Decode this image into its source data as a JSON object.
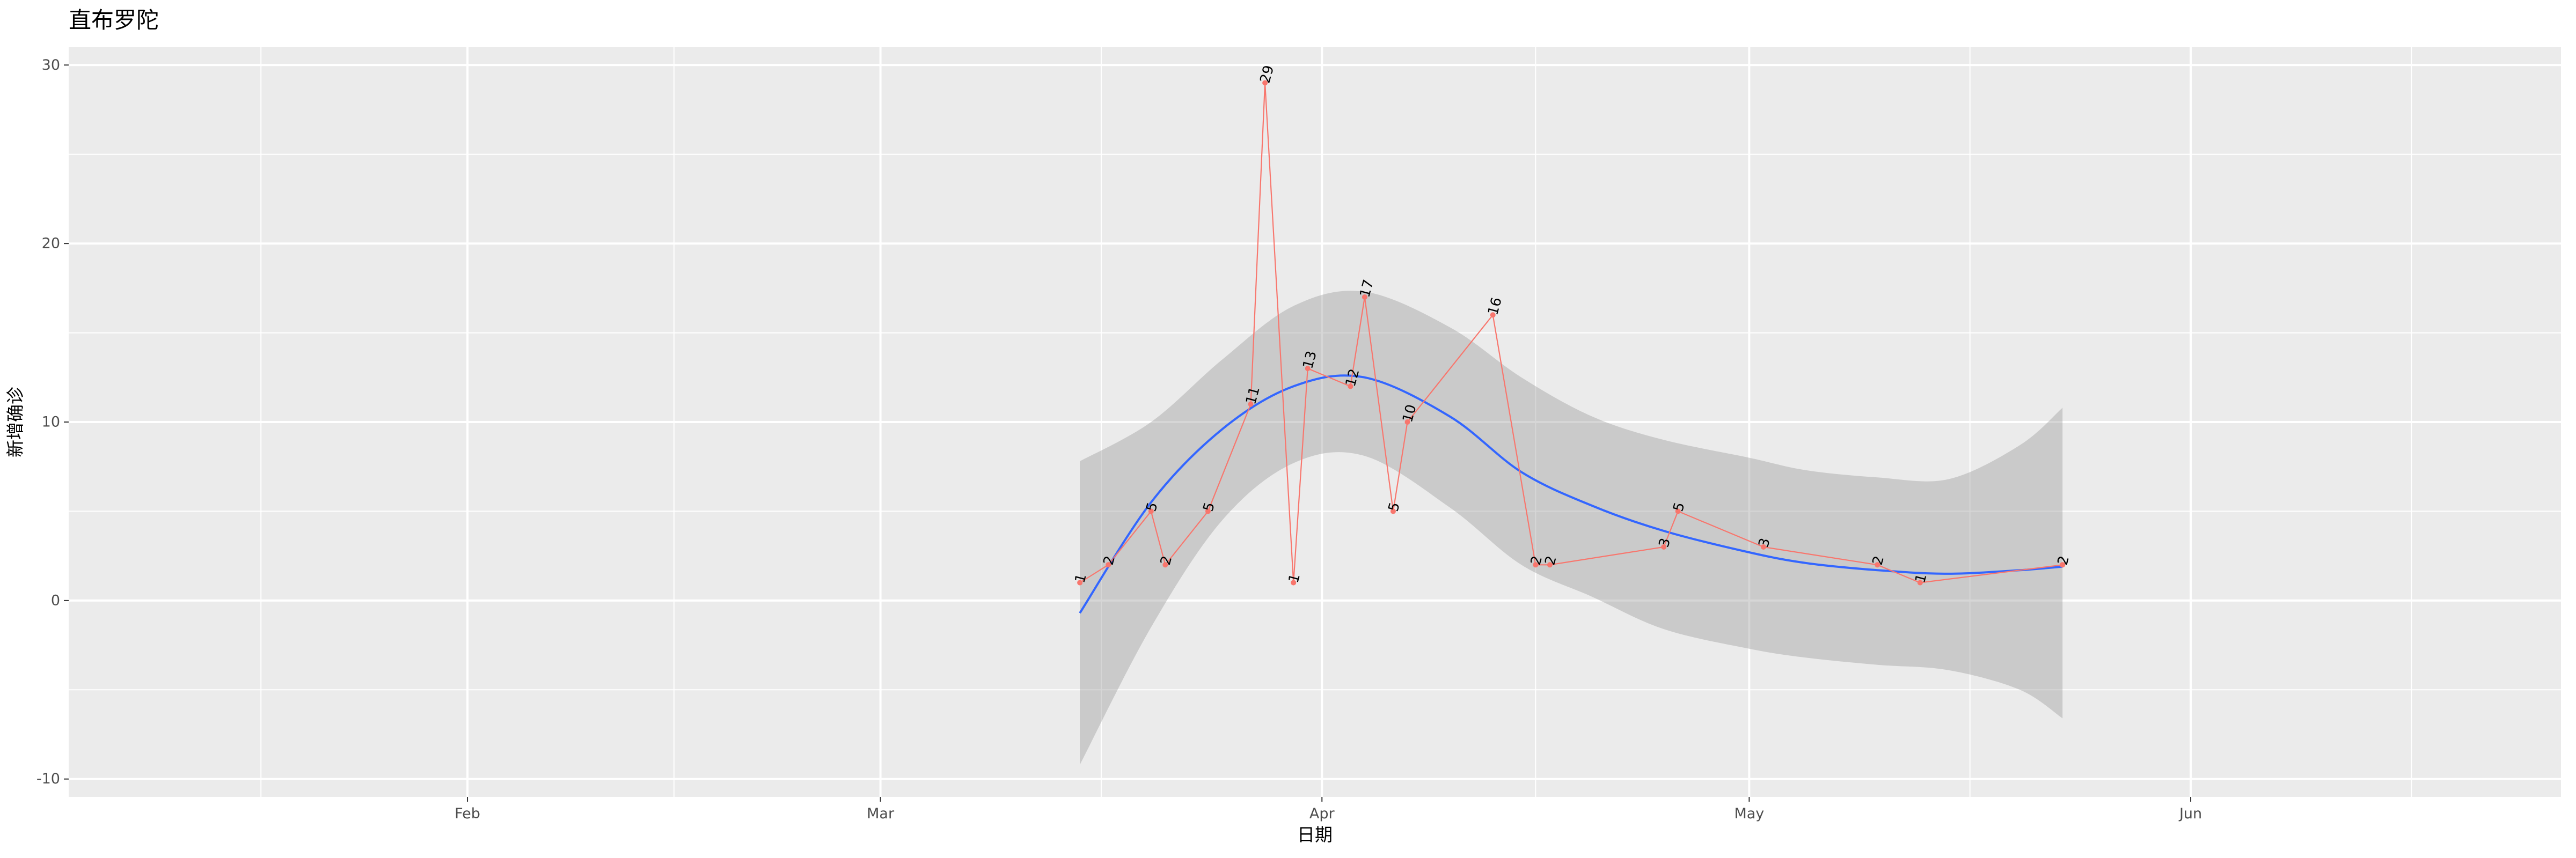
{
  "chart_data": {
    "type": "line",
    "title": "直布罗陀",
    "xlabel": "日期",
    "ylabel": "新增确诊",
    "x_ticks": [
      "2020-02-01",
      "2020-03-01",
      "2020-04-01",
      "2020-05-01",
      "2020-06-01"
    ],
    "x_tick_labels": [
      "Feb",
      "Mar",
      "Apr",
      "May",
      "Jun"
    ],
    "xlim": [
      "2020-01-04",
      "2020-06-27"
    ],
    "ylim": [
      -11,
      31
    ],
    "y_ticks": [
      -10,
      0,
      10,
      20,
      30
    ],
    "y_tick_labels": [
      "-10",
      "0",
      "10",
      "20",
      "30"
    ],
    "grid": true,
    "series": [
      {
        "x": [
          "2020-03-15",
          "2020-03-17",
          "2020-03-20",
          "2020-03-21",
          "2020-03-24",
          "2020-03-27",
          "2020-03-28",
          "2020-03-30",
          "2020-03-31",
          "2020-04-03",
          "2020-04-04",
          "2020-04-06",
          "2020-04-07",
          "2020-04-13",
          "2020-04-16",
          "2020-04-17",
          "2020-04-25",
          "2020-04-26",
          "2020-05-02",
          "2020-05-10",
          "2020-05-13",
          "2020-05-23",
          "2020-05-23"
        ],
        "values": [
          1,
          2,
          5,
          2,
          5,
          11,
          29,
          1,
          13,
          12,
          17,
          5,
          10,
          16,
          2,
          2,
          3,
          5,
          3,
          2,
          1,
          2,
          2
        ],
        "labels": [
          "1",
          "2",
          "5",
          "2",
          "5",
          "11",
          "29",
          "1",
          "13",
          "12",
          "17",
          "5",
          "10",
          "16",
          "2",
          "2",
          "3",
          "5",
          "3",
          "2",
          "1",
          "2",
          "2"
        ],
        "color": "#f8766d"
      }
    ],
    "smooth": {
      "color": "#3366ff",
      "band_color": "#999999",
      "x": [
        "2020-03-15",
        "2020-03-20",
        "2020-03-25",
        "2020-03-30",
        "2020-04-04",
        "2020-04-10",
        "2020-04-15",
        "2020-04-20",
        "2020-04-25",
        "2020-05-01",
        "2020-05-05",
        "2020-05-10",
        "2020-05-15",
        "2020-05-20",
        "2020-05-23"
      ],
      "fit": [
        -0.7,
        5.5,
        9.6,
        12.0,
        12.5,
        10.3,
        7.2,
        5.3,
        3.9,
        2.7,
        2.1,
        1.7,
        1.5,
        1.7,
        1.9
      ],
      "lower": [
        -9.2,
        -1.5,
        4.5,
        7.7,
        8.1,
        5.2,
        2.0,
        0.2,
        -1.6,
        -2.7,
        -3.2,
        -3.6,
        -3.9,
        -5.0,
        -6.6
      ],
      "upper": [
        7.8,
        10.0,
        13.5,
        16.5,
        17.3,
        15.3,
        12.5,
        10.3,
        9.0,
        8.0,
        7.3,
        6.9,
        6.8,
        8.7,
        10.8
      ]
    }
  }
}
